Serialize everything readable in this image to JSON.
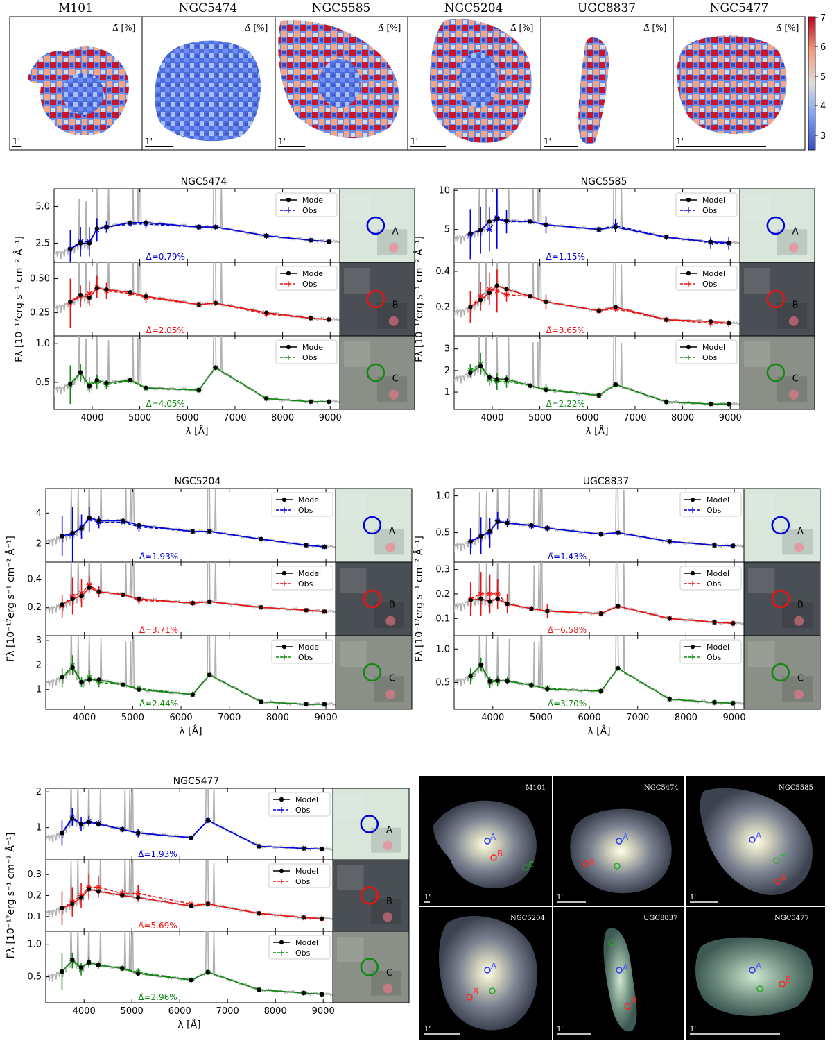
{
  "colors": {
    "A": "#0000dd",
    "B": "#ee1111",
    "C": "#118811",
    "model": "#000000",
    "spectrum": "#b0b0b0"
  },
  "maps": {
    "label": "Δ̄ [%]",
    "scale_label": "1'",
    "colorbar_ticks": [
      "3",
      "4",
      "5",
      "6",
      "7"
    ],
    "galaxies": [
      "M101",
      "NGC5474",
      "NGC5585",
      "NGC5204",
      "UGC8837",
      "NGC5477"
    ]
  },
  "legend": {
    "model": "Model",
    "obs": "Obs"
  },
  "axis_labels": {
    "x": "λ [Å]",
    "y": "Fλ [10⁻¹⁷erg s⁻¹ cm⁻² Å⁻¹]"
  },
  "x_ticks": [
    "4000",
    "5000",
    "6000",
    "7000",
    "8000",
    "9000"
  ],
  "region_labels": [
    "A",
    "B",
    "C"
  ],
  "chart_data": [
    {
      "type": "line",
      "title": "NGC5474",
      "xlabel": "λ [Å]",
      "ylabel": "Fλ [10⁻¹⁷erg s⁻¹ cm⁻² Å⁻¹]",
      "xlim": [
        3200,
        9200
      ],
      "x": [
        3540,
        3755,
        3940,
        4100,
        4300,
        4800,
        5130,
        6240,
        6590,
        7660,
        8590,
        8970
      ],
      "panels": [
        {
          "region": "A",
          "ylim": [
            1.2,
            6.2
          ],
          "yticks": [
            "2.5",
            "5.0"
          ],
          "ytick_values": [
            2.5,
            5.0
          ],
          "delta": "Δ̄=0.79%",
          "model": [
            2.1,
            2.5,
            2.5,
            3.5,
            3.6,
            3.9,
            3.9,
            3.6,
            3.6,
            3.0,
            2.7,
            2.6
          ],
          "obs": [
            2.1,
            2.6,
            2.6,
            3.4,
            3.6,
            3.8,
            3.8,
            3.6,
            3.6,
            3.0,
            2.7,
            2.6
          ],
          "err": [
            1.3,
            1.0,
            1.0,
            0.8,
            0.4,
            0.1,
            0.3,
            0.1,
            0.1,
            0.1,
            0.15,
            0.15
          ]
        },
        {
          "region": "B",
          "ylim": [
            0.08,
            0.62
          ],
          "yticks": [
            "0.25",
            "0.50"
          ],
          "ytick_values": [
            0.25,
            0.5
          ],
          "delta": "Δ̄=2.05%",
          "model": [
            0.33,
            0.38,
            0.36,
            0.43,
            0.42,
            0.4,
            0.37,
            0.31,
            0.32,
            0.25,
            0.21,
            0.2
          ],
          "obs": [
            0.32,
            0.37,
            0.39,
            0.44,
            0.41,
            0.39,
            0.36,
            0.31,
            0.32,
            0.24,
            0.21,
            0.2
          ],
          "err": [
            0.18,
            0.08,
            0.09,
            0.08,
            0.06,
            0.02,
            0.04,
            0.02,
            0.02,
            0.02,
            0.02,
            0.02
          ]
        },
        {
          "region": "C",
          "ylim": [
            0.15,
            1.1
          ],
          "yticks": [
            "0.5",
            "1.0"
          ],
          "ytick_values": [
            0.5,
            1.0
          ],
          "delta": "Δ̄=4.05%",
          "model": [
            0.48,
            0.63,
            0.45,
            0.53,
            0.49,
            0.53,
            0.43,
            0.4,
            0.69,
            0.29,
            0.25,
            0.25
          ],
          "obs": [
            0.47,
            0.62,
            0.47,
            0.51,
            0.47,
            0.52,
            0.42,
            0.4,
            0.69,
            0.29,
            0.25,
            0.25
          ],
          "err": [
            0.25,
            0.12,
            0.1,
            0.09,
            0.06,
            0.02,
            0.04,
            0.02,
            0.02,
            0.02,
            0.02,
            0.02
          ]
        }
      ]
    },
    {
      "type": "line",
      "title": "NGC5585",
      "xlabel": "λ [Å]",
      "ylabel": "Fλ [10⁻¹⁷erg s⁻¹ cm⁻² Å⁻¹]",
      "xlim": [
        3200,
        9200
      ],
      "x": [
        3540,
        3755,
        3940,
        4100,
        4300,
        4800,
        5130,
        6240,
        6590,
        7660,
        8590,
        8970
      ],
      "panels": [
        {
          "region": "A",
          "ylim": [
            0.8,
            10.2
          ],
          "yticks": [
            "5",
            "10"
          ],
          "ytick_values": [
            5,
            10
          ],
          "delta": "Δ̄=1.15%",
          "model": [
            4.5,
            4.9,
            6.0,
            6.3,
            6.1,
            6.0,
            5.6,
            5.0,
            5.3,
            4.0,
            3.4,
            3.3
          ],
          "obs": [
            4.4,
            4.9,
            5.0,
            6.5,
            6.0,
            6.0,
            5.6,
            5.0,
            5.5,
            4.0,
            3.3,
            3.2
          ],
          "err": [
            3.2,
            3.0,
            2.8,
            4.0,
            1.5,
            0.2,
            1.1,
            0.2,
            0.8,
            0.2,
            0.8,
            0.8
          ]
        },
        {
          "region": "B",
          "ylim": [
            0.04,
            0.45
          ],
          "yticks": [
            "0.2",
            "0.4"
          ],
          "ytick_values": [
            0.2,
            0.4
          ],
          "delta": "Δ̄=3.65%",
          "model": [
            0.2,
            0.24,
            0.28,
            0.32,
            0.3,
            0.26,
            0.23,
            0.18,
            0.2,
            0.13,
            0.12,
            0.11
          ],
          "obs": [
            0.2,
            0.26,
            0.3,
            0.29,
            0.27,
            0.26,
            0.23,
            0.18,
            0.19,
            0.13,
            0.11,
            0.11
          ],
          "err": [
            0.09,
            0.08,
            0.09,
            0.12,
            0.04,
            0.01,
            0.04,
            0.01,
            0.01,
            0.01,
            0.02,
            0.02
          ]
        },
        {
          "region": "C",
          "ylim": [
            0.2,
            3.6
          ],
          "yticks": [
            "1",
            "2",
            "3"
          ],
          "ytick_values": [
            1,
            2,
            3
          ],
          "delta": "Δ̄=2.22%",
          "model": [
            1.9,
            2.2,
            1.7,
            1.6,
            1.6,
            1.3,
            1.1,
            0.85,
            1.35,
            0.55,
            0.45,
            0.45
          ],
          "obs": [
            2.0,
            2.3,
            1.6,
            1.5,
            1.5,
            1.3,
            1.15,
            0.85,
            1.35,
            0.55,
            0.45,
            0.45
          ],
          "err": [
            0.3,
            0.5,
            0.3,
            0.4,
            0.3,
            0.1,
            0.2,
            0.05,
            0.05,
            0.05,
            0.05,
            0.05
          ]
        }
      ]
    },
    {
      "type": "line",
      "title": "NGC5204",
      "xlabel": "λ [Å]",
      "ylabel": "Fλ [10⁻¹⁷erg s⁻¹ cm⁻² Å⁻¹]",
      "xlim": [
        3200,
        9200
      ],
      "x": [
        3540,
        3755,
        3940,
        4100,
        4300,
        4800,
        5130,
        6240,
        6590,
        7660,
        8590,
        8970
      ],
      "panels": [
        {
          "region": "A",
          "ylim": [
            0.8,
            5.6
          ],
          "yticks": [
            "2",
            "4"
          ],
          "ytick_values": [
            2,
            4
          ],
          "delta": "Δ̄=1.93%",
          "model": [
            2.5,
            2.7,
            3.0,
            3.7,
            3.5,
            3.5,
            3.2,
            2.8,
            2.8,
            2.3,
            1.9,
            1.8
          ],
          "obs": [
            2.5,
            2.6,
            3.1,
            3.6,
            3.4,
            3.4,
            3.1,
            2.8,
            2.8,
            2.3,
            1.9,
            1.8
          ],
          "err": [
            1.3,
            1.8,
            0.8,
            0.8,
            0.4,
            0.1,
            0.3,
            0.1,
            0.1,
            0.1,
            0.1,
            0.1
          ]
        },
        {
          "region": "B",
          "ylim": [
            0.0,
            0.52
          ],
          "yticks": [
            "0.2",
            "0.4"
          ],
          "ytick_values": [
            0.2,
            0.4
          ],
          "delta": "Δ̄=3.71%",
          "model": [
            0.22,
            0.26,
            0.28,
            0.34,
            0.31,
            0.29,
            0.26,
            0.23,
            0.24,
            0.2,
            0.18,
            0.17
          ],
          "obs": [
            0.21,
            0.28,
            0.3,
            0.36,
            0.31,
            0.29,
            0.25,
            0.23,
            0.24,
            0.2,
            0.18,
            0.17
          ],
          "err": [
            0.08,
            0.13,
            0.1,
            0.06,
            0.04,
            0.01,
            0.03,
            0.01,
            0.01,
            0.01,
            0.01,
            0.01
          ]
        },
        {
          "region": "C",
          "ylim": [
            0.2,
            3.2
          ],
          "yticks": [
            "1",
            "2",
            "3"
          ],
          "ytick_values": [
            1,
            2,
            3
          ],
          "delta": "Δ̄=2.44%",
          "model": [
            1.5,
            1.9,
            1.3,
            1.4,
            1.4,
            1.2,
            1.0,
            0.8,
            1.6,
            0.5,
            0.4,
            0.4
          ],
          "obs": [
            1.5,
            2.0,
            1.3,
            1.5,
            1.3,
            1.2,
            1.05,
            0.8,
            1.6,
            0.5,
            0.4,
            0.4
          ],
          "err": [
            0.4,
            0.4,
            0.2,
            0.3,
            0.2,
            0.05,
            0.15,
            0.05,
            0.05,
            0.05,
            0.05,
            0.05
          ]
        }
      ]
    },
    {
      "type": "line",
      "title": "UGC8837",
      "xlabel": "λ [Å]",
      "ylabel": "Fλ [10⁻¹⁷erg s⁻¹ cm⁻² Å⁻¹]",
      "xlim": [
        3200,
        9200
      ],
      "x": [
        3540,
        3755,
        3940,
        4100,
        4300,
        4800,
        5130,
        6240,
        6590,
        7660,
        8590,
        8970
      ],
      "panels": [
        {
          "region": "A",
          "ylim": [
            0.1,
            1.1
          ],
          "yticks": [
            "0.5",
            "1.0"
          ],
          "ytick_values": [
            0.5,
            1.0
          ],
          "delta": "Δ̄=1.43%",
          "model": [
            0.38,
            0.45,
            0.52,
            0.65,
            0.63,
            0.6,
            0.56,
            0.48,
            0.5,
            0.38,
            0.33,
            0.32
          ],
          "obs": [
            0.38,
            0.46,
            0.5,
            0.66,
            0.63,
            0.59,
            0.56,
            0.48,
            0.5,
            0.38,
            0.33,
            0.32
          ],
          "err": [
            0.18,
            0.25,
            0.2,
            0.12,
            0.06,
            0.02,
            0.04,
            0.02,
            0.02,
            0.02,
            0.02,
            0.02
          ]
        },
        {
          "region": "B",
          "ylim": [
            0.03,
            0.33
          ],
          "yticks": [
            "0.1",
            "0.2",
            "0.3"
          ],
          "ytick_values": [
            0.1,
            0.2,
            0.3
          ],
          "delta": "Δ̄=6.58%",
          "model": [
            0.175,
            0.18,
            0.17,
            0.18,
            0.16,
            0.14,
            0.13,
            0.12,
            0.15,
            0.1,
            0.085,
            0.08
          ],
          "obs": [
            0.18,
            0.2,
            0.2,
            0.2,
            0.16,
            0.14,
            0.13,
            0.12,
            0.15,
            0.1,
            0.085,
            0.08
          ],
          "err": [
            0.07,
            0.09,
            0.08,
            0.06,
            0.04,
            0.01,
            0.03,
            0.01,
            0.01,
            0.01,
            0.01,
            0.01
          ]
        },
        {
          "region": "C",
          "ylim": [
            0.1,
            1.2
          ],
          "yticks": [
            "0.5",
            "1.0"
          ],
          "ytick_values": [
            0.5,
            1.0
          ],
          "delta": "Δ̄=3.70%",
          "model": [
            0.6,
            0.76,
            0.52,
            0.53,
            0.52,
            0.46,
            0.4,
            0.37,
            0.71,
            0.25,
            0.2,
            0.19
          ],
          "obs": [
            0.59,
            0.77,
            0.5,
            0.52,
            0.53,
            0.46,
            0.41,
            0.37,
            0.71,
            0.25,
            0.2,
            0.19
          ],
          "err": [
            0.12,
            0.1,
            0.09,
            0.08,
            0.06,
            0.02,
            0.05,
            0.02,
            0.02,
            0.02,
            0.02,
            0.02
          ]
        }
      ]
    },
    {
      "type": "line",
      "title": "NGC5477",
      "xlabel": "λ [Å]",
      "ylabel": "Fλ [10⁻¹⁷erg s⁻¹ cm⁻² Å⁻¹]",
      "xlim": [
        3200,
        9200
      ],
      "x": [
        3540,
        3755,
        3940,
        4100,
        4300,
        4800,
        5130,
        6240,
        6590,
        7660,
        8590,
        8970
      ],
      "panels": [
        {
          "region": "A",
          "ylim": [
            0.1,
            2.1
          ],
          "yticks": [
            "1",
            "2"
          ],
          "ytick_values": [
            1,
            2
          ],
          "delta": "Δ̄=1.93%",
          "model": [
            0.85,
            1.25,
            1.1,
            1.15,
            1.1,
            0.95,
            0.85,
            0.72,
            1.2,
            0.48,
            0.42,
            0.4
          ],
          "obs": [
            0.85,
            1.3,
            1.1,
            1.18,
            1.12,
            0.95,
            0.85,
            0.72,
            1.2,
            0.48,
            0.42,
            0.4
          ],
          "err": [
            0.35,
            0.25,
            0.2,
            0.15,
            0.1,
            0.03,
            0.12,
            0.03,
            0.03,
            0.03,
            0.03,
            0.03
          ]
        },
        {
          "region": "B",
          "ylim": [
            0.03,
            0.37
          ],
          "yticks": [
            "0.1",
            "0.2",
            "0.3"
          ],
          "ytick_values": [
            0.1,
            0.2,
            0.3
          ],
          "delta": "Δ̄=5.69%",
          "model": [
            0.14,
            0.16,
            0.19,
            0.23,
            0.22,
            0.2,
            0.19,
            0.15,
            0.16,
            0.115,
            0.095,
            0.09
          ],
          "obs": [
            0.14,
            0.17,
            0.2,
            0.24,
            0.24,
            0.21,
            0.21,
            0.16,
            0.16,
            0.115,
            0.095,
            0.09
          ],
          "err": [
            0.08,
            0.07,
            0.06,
            0.06,
            0.05,
            0.02,
            0.04,
            0.01,
            0.01,
            0.01,
            0.01,
            0.01
          ]
        },
        {
          "region": "C",
          "ylim": [
            0.1,
            1.2
          ],
          "yticks": [
            "0.5",
            "1.0"
          ],
          "ytick_values": [
            0.5,
            1.0
          ],
          "delta": "Δ̄=2.96%",
          "model": [
            0.58,
            0.76,
            0.64,
            0.72,
            0.68,
            0.63,
            0.55,
            0.45,
            0.57,
            0.3,
            0.25,
            0.23
          ],
          "obs": [
            0.58,
            0.75,
            0.62,
            0.72,
            0.68,
            0.63,
            0.57,
            0.45,
            0.57,
            0.3,
            0.25,
            0.23
          ],
          "err": [
            0.28,
            0.12,
            0.1,
            0.08,
            0.06,
            0.02,
            0.06,
            0.02,
            0.02,
            0.02,
            0.02,
            0.02
          ]
        }
      ]
    }
  ]
}
